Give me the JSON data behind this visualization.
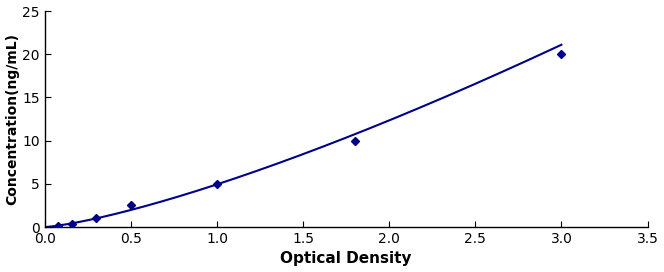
{
  "x_data": [
    0.078,
    0.156,
    0.3,
    0.5,
    1.0,
    1.8,
    3.0
  ],
  "y_data": [
    0.16,
    0.4,
    1.0,
    2.5,
    5.0,
    10.0,
    20.0
  ],
  "line_color": "#00008B",
  "marker_style": "D",
  "marker_size": 4,
  "marker_color": "#00008B",
  "xlabel": "Optical Density",
  "ylabel": "Concentration(ng/mL)",
  "xlim": [
    0,
    3.5
  ],
  "ylim": [
    0,
    25
  ],
  "xticks": [
    0,
    0.5,
    1.0,
    1.5,
    2.0,
    2.5,
    3.0,
    3.5
  ],
  "yticks": [
    0,
    5,
    10,
    15,
    20,
    25
  ],
  "xlabel_fontsize": 11,
  "ylabel_fontsize": 10,
  "tick_fontsize": 10,
  "line_width": 1.5,
  "background_color": "#ffffff"
}
